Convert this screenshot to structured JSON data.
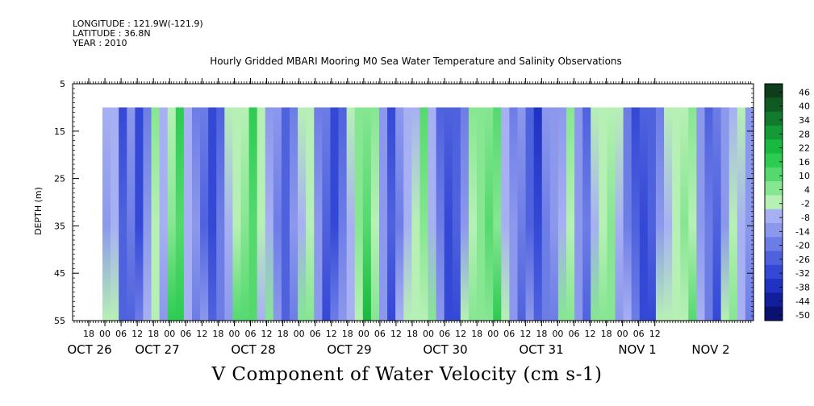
{
  "header": {
    "longitude": "LONGITUDE : 121.9W(-121.9)",
    "latitude": "LATITUDE : 36.8N",
    "year": "YEAR : 2010"
  },
  "chart_data": {
    "type": "heatmap",
    "title": "Hourly Gridded MBARI Mooring M0 Sea Water Temperature and Salinity Observations",
    "bottom_title": "V Component of Water Velocity (cm s-1)",
    "ylabel": "DEPTH (m)",
    "ylim": [
      5,
      55
    ],
    "y_inverted": true,
    "y_ticks": [
      5,
      15,
      25,
      35,
      45,
      55
    ],
    "x_hour_ticks": [
      "18",
      "00",
      "06",
      "12",
      "18",
      "00",
      "06",
      "12",
      "18",
      "00",
      "06",
      "12",
      "18",
      "00",
      "06",
      "12",
      "18",
      "00",
      "06",
      "12",
      "18",
      "00",
      "06",
      "12",
      "18",
      "00",
      "06",
      "12",
      "18",
      "00",
      "06",
      "12",
      "18",
      "00",
      "06",
      "12"
    ],
    "x_day_labels": [
      "OCT 26",
      "OCT 27",
      "OCT 28",
      "OCT 29",
      "OCT 30",
      "OCT 31",
      "NOV  1",
      "NOV  2"
    ],
    "data_depth_range": [
      10,
      55
    ],
    "colorbar": {
      "levels": [
        -50,
        -44,
        -38,
        -32,
        -26,
        -20,
        -14,
        -8,
        -2,
        4,
        10,
        16,
        22,
        28,
        34,
        40,
        46
      ],
      "labels": [
        "46",
        "40",
        "34",
        "28",
        "22",
        "16",
        "10",
        "4",
        "-2",
        "-8",
        "-14",
        "-20",
        "-26",
        "-32",
        "-38",
        "-44",
        "-50"
      ],
      "colors_high_to_low": [
        "#0d3d1a",
        "#0f5a22",
        "#117a2c",
        "#149b35",
        "#19b83f",
        "#2dcb52",
        "#55d96f",
        "#86e692",
        "#b7f0b5",
        "#a7b0f2",
        "#8c98ec",
        "#6d7de6",
        "#4f62de",
        "#3448d6",
        "#1f32c2",
        "#121f9c",
        "#0a1170"
      ]
    }
  }
}
